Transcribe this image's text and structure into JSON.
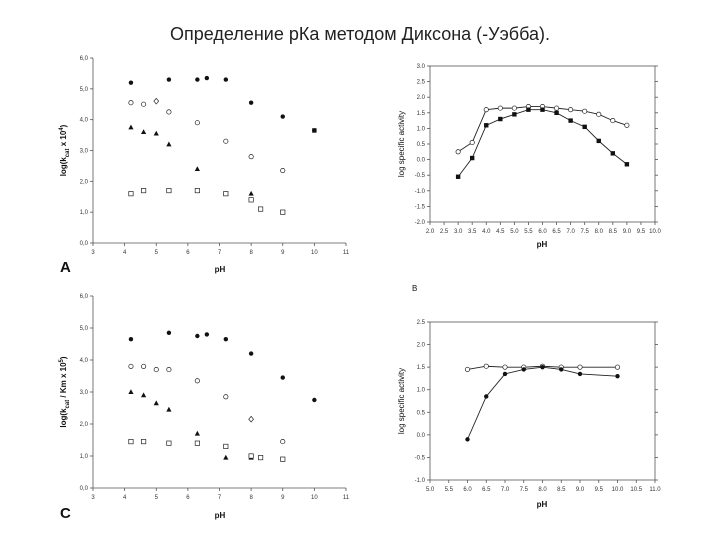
{
  "title": "Определение рКа методом Диксона (-Уэбба).",
  "chart_data": [
    {
      "type": "scatter",
      "panel_label": "A",
      "xlabel": "pH",
      "ylabel": "log(k_cat x 10^4)",
      "ylabel_parts": [
        "log(k",
        "cat",
        " x 10",
        "4",
        ")"
      ],
      "xticks": [
        3,
        4,
        5,
        6,
        7,
        8,
        9,
        10,
        11
      ],
      "yticks": [
        "0,0",
        "1,0",
        "2,0",
        "3,0",
        "4,0",
        "5,0",
        "6,0"
      ],
      "xlim": [
        3,
        11
      ],
      "ylim": [
        0,
        6
      ],
      "series": [
        {
          "marker": "filled-circle",
          "x": [
            4.2,
            5.4,
            6.3,
            6.6,
            7.2,
            8.0,
            9.0,
            10.0
          ],
          "y": [
            5.2,
            5.3,
            5.3,
            5.35,
            5.3,
            4.55,
            4.1,
            3.65
          ]
        },
        {
          "marker": "open-circle",
          "x": [
            4.2,
            4.6,
            5.4,
            6.3,
            7.2,
            8.0,
            9.0
          ],
          "y": [
            4.55,
            4.5,
            4.25,
            3.9,
            3.3,
            2.8,
            2.35
          ]
        },
        {
          "marker": "open-diamond",
          "x": [
            5.0
          ],
          "y": [
            4.6
          ]
        },
        {
          "marker": "filled-triangle",
          "x": [
            4.2,
            4.6,
            5.0,
            5.4,
            6.3,
            7.2,
            8.0
          ],
          "y": [
            3.75,
            3.6,
            3.55,
            3.2,
            2.4,
            1.6,
            1.6
          ]
        },
        {
          "marker": "open-square",
          "x": [
            4.2,
            4.6,
            5.4,
            6.3,
            7.2,
            8.0,
            8.3,
            9.0
          ],
          "y": [
            1.6,
            1.7,
            1.7,
            1.7,
            1.6,
            1.4,
            1.1,
            1.0
          ]
        },
        {
          "marker": "filled-square",
          "x": [
            10.0
          ],
          "y": [
            3.65
          ]
        }
      ]
    },
    {
      "type": "line",
      "panel_label": "",
      "xlabel": "pH",
      "ylabel": "log specific activity",
      "xticks": [
        "2.0",
        "2.5",
        "3.0",
        "3.5",
        "4.0",
        "4.5",
        "5.0",
        "5.5",
        "6.0",
        "6.5",
        "7.0",
        "7.5",
        "8.0",
        "8.5",
        "9.0",
        "9.5",
        "10.0"
      ],
      "yticks": [
        "3.0",
        "2.5",
        "2.0",
        "1.5",
        "1.0",
        "0.5",
        "0.0",
        "-0.5",
        "-1.0",
        "-1.5",
        "-2.0"
      ],
      "xlim": [
        2.0,
        10.0
      ],
      "ylim": [
        -2.0,
        3.0
      ],
      "series": [
        {
          "marker": "open-circle",
          "x": [
            3.0,
            3.5,
            4.0,
            4.5,
            5.0,
            5.5,
            6.0,
            6.5,
            7.0,
            7.5,
            8.0,
            8.5,
            9.0
          ],
          "y": [
            0.25,
            0.55,
            1.6,
            1.65,
            1.65,
            1.7,
            1.7,
            1.65,
            1.6,
            1.55,
            1.45,
            1.25,
            1.1
          ]
        },
        {
          "marker": "filled-square",
          "x": [
            3.0,
            3.5,
            4.0,
            4.5,
            5.0,
            5.5,
            6.0,
            6.5,
            7.0,
            7.5,
            8.0,
            8.5,
            9.0
          ],
          "y": [
            -0.55,
            0.05,
            1.1,
            1.3,
            1.45,
            1.6,
            1.6,
            1.5,
            1.25,
            1.05,
            0.6,
            0.2,
            -0.15
          ]
        }
      ]
    },
    {
      "type": "scatter",
      "panel_label": "C",
      "xlabel": "pH",
      "ylabel": "log(k_cat / Km x 10^5)",
      "ylabel_parts": [
        "log(k",
        "cat",
        " / Km x 10",
        "5",
        ")"
      ],
      "xticks": [
        3,
        4,
        5,
        6,
        7,
        8,
        9,
        10,
        11
      ],
      "yticks": [
        "0,0",
        "1,0",
        "2,0",
        "3,0",
        "4,0",
        "5,0",
        "6,0"
      ],
      "xlim": [
        3,
        11
      ],
      "ylim": [
        0,
        6
      ],
      "series": [
        {
          "marker": "filled-circle",
          "x": [
            4.2,
            5.4,
            6.3,
            6.6,
            7.2,
            8.0,
            9.0,
            10.0
          ],
          "y": [
            4.65,
            4.85,
            4.75,
            4.8,
            4.65,
            4.2,
            3.45,
            2.75
          ]
        },
        {
          "marker": "open-circle",
          "x": [
            4.2,
            4.6,
            5.0,
            5.4,
            6.3,
            7.2,
            9.0
          ],
          "y": [
            3.8,
            3.8,
            3.7,
            3.7,
            3.35,
            2.85,
            1.45
          ]
        },
        {
          "marker": "open-diamond",
          "x": [
            8.0
          ],
          "y": [
            2.15
          ]
        },
        {
          "marker": "filled-triangle",
          "x": [
            4.2,
            4.6,
            5.0,
            5.4,
            6.3,
            7.2,
            8.0
          ],
          "y": [
            3.0,
            2.9,
            2.65,
            2.45,
            1.7,
            0.95,
            0.95
          ]
        },
        {
          "marker": "open-square",
          "x": [
            4.2,
            4.6,
            5.4,
            6.3,
            7.2,
            8.0,
            8.3,
            9.0
          ],
          "y": [
            1.45,
            1.45,
            1.4,
            1.4,
            1.3,
            1.0,
            0.95,
            0.9
          ]
        }
      ]
    },
    {
      "type": "line",
      "panel_label": "B",
      "xlabel": "pH",
      "ylabel": "log specific activity",
      "xticks": [
        "5.0",
        "5.5",
        "6.0",
        "6.5",
        "7.0",
        "7.5",
        "8.0",
        "8.5",
        "9.0",
        "9.5",
        "10.0",
        "10.5",
        "11.0"
      ],
      "yticks": [
        "2.5",
        "2.0",
        "1.5",
        "1.0",
        "0.5",
        "0.0",
        "-0.5",
        "-1.0"
      ],
      "xlim": [
        5.0,
        11.0
      ],
      "ylim": [
        -1.0,
        2.5
      ],
      "series": [
        {
          "marker": "open-circle",
          "x": [
            6.0,
            6.5,
            7.0,
            7.5,
            8.0,
            8.5,
            9.0,
            10.0
          ],
          "y": [
            1.45,
            1.52,
            1.5,
            1.5,
            1.52,
            1.5,
            1.5,
            1.5
          ]
        },
        {
          "marker": "filled-circle",
          "x": [
            6.0,
            6.5,
            7.0,
            7.5,
            8.0,
            8.5,
            9.0,
            10.0
          ],
          "y": [
            -0.1,
            0.85,
            1.35,
            1.45,
            1.5,
            1.45,
            1.35,
            1.3
          ]
        }
      ]
    }
  ]
}
